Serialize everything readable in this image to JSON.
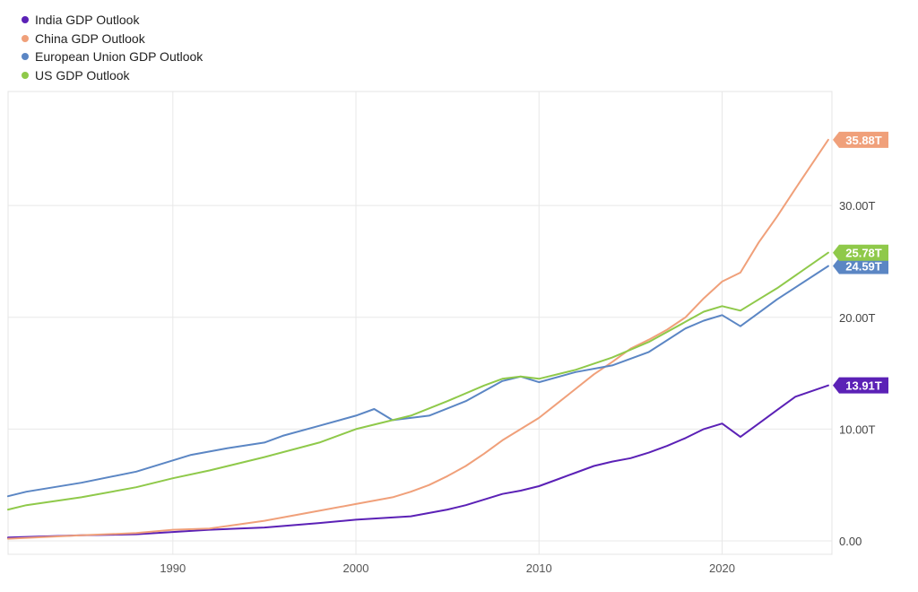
{
  "chart_data": {
    "type": "line",
    "title": "",
    "xlabel": "",
    "ylabel": "",
    "xlim": [
      1981,
      2026
    ],
    "ylim": [
      -1.2,
      40.2
    ],
    "x_ticks": [
      1990,
      2000,
      2010,
      2020
    ],
    "x_tick_labels": [
      "1990",
      "2000",
      "2010",
      "2020"
    ],
    "y_ticks": [
      0,
      10,
      20,
      30
    ],
    "y_tick_labels": [
      "0.00",
      "10.00T",
      "20.00T",
      "30.00T"
    ],
    "grid": true,
    "legend_position": "top-left",
    "series": [
      {
        "name": "India GDP Outlook",
        "color": "#5b21b6",
        "end_label": "13.91T",
        "points": [
          [
            1981,
            0.3
          ],
          [
            1985,
            0.5
          ],
          [
            1988,
            0.6
          ],
          [
            1990,
            0.8
          ],
          [
            1992,
            1.0
          ],
          [
            1995,
            1.2
          ],
          [
            1998,
            1.6
          ],
          [
            2000,
            1.9
          ],
          [
            2002,
            2.1
          ],
          [
            2003,
            2.2
          ],
          [
            2004,
            2.5
          ],
          [
            2005,
            2.8
          ],
          [
            2006,
            3.2
          ],
          [
            2007,
            3.7
          ],
          [
            2008,
            4.2
          ],
          [
            2009,
            4.5
          ],
          [
            2010,
            4.9
          ],
          [
            2011,
            5.5
          ],
          [
            2012,
            6.1
          ],
          [
            2013,
            6.7
          ],
          [
            2014,
            7.1
          ],
          [
            2015,
            7.4
          ],
          [
            2016,
            7.9
          ],
          [
            2017,
            8.5
          ],
          [
            2018,
            9.2
          ],
          [
            2019,
            10.0
          ],
          [
            2020,
            10.5
          ],
          [
            2021,
            9.3
          ],
          [
            2022,
            10.5
          ],
          [
            2023,
            11.7
          ],
          [
            2024,
            12.9
          ],
          [
            2025.8,
            13.91
          ]
        ]
      },
      {
        "name": "China GDP Outlook",
        "color": "#f0a07a",
        "end_label": "35.88T",
        "points": [
          [
            1981,
            0.2
          ],
          [
            1985,
            0.5
          ],
          [
            1988,
            0.7
          ],
          [
            1990,
            1.0
          ],
          [
            1992,
            1.1
          ],
          [
            1995,
            1.8
          ],
          [
            1998,
            2.7
          ],
          [
            2000,
            3.3
          ],
          [
            2002,
            3.9
          ],
          [
            2003,
            4.4
          ],
          [
            2004,
            5.0
          ],
          [
            2005,
            5.8
          ],
          [
            2006,
            6.7
          ],
          [
            2007,
            7.8
          ],
          [
            2008,
            9.0
          ],
          [
            2009,
            10.0
          ],
          [
            2010,
            11.0
          ],
          [
            2011,
            12.3
          ],
          [
            2012,
            13.6
          ],
          [
            2013,
            14.9
          ],
          [
            2014,
            16.0
          ],
          [
            2015,
            17.2
          ],
          [
            2016,
            18.0
          ],
          [
            2017,
            18.9
          ],
          [
            2018,
            20.0
          ],
          [
            2019,
            21.7
          ],
          [
            2020,
            23.2
          ],
          [
            2021,
            24.0
          ],
          [
            2022,
            26.7
          ],
          [
            2023,
            29.0
          ],
          [
            2024,
            31.5
          ],
          [
            2025.8,
            35.88
          ]
        ]
      },
      {
        "name": "European Union GDP Outlook",
        "color": "#5b86c4",
        "end_label": "24.59T",
        "points": [
          [
            1981,
            4.0
          ],
          [
            1982,
            4.4
          ],
          [
            1985,
            5.2
          ],
          [
            1988,
            6.2
          ],
          [
            1990,
            7.2
          ],
          [
            1991,
            7.7
          ],
          [
            1993,
            8.3
          ],
          [
            1995,
            8.8
          ],
          [
            1996,
            9.4
          ],
          [
            1998,
            10.3
          ],
          [
            2000,
            11.2
          ],
          [
            2001,
            11.8
          ],
          [
            2002,
            10.8
          ],
          [
            2004,
            11.2
          ],
          [
            2006,
            12.5
          ],
          [
            2008,
            14.3
          ],
          [
            2009,
            14.7
          ],
          [
            2010,
            14.2
          ],
          [
            2012,
            15.1
          ],
          [
            2014,
            15.7
          ],
          [
            2016,
            16.9
          ],
          [
            2018,
            19.0
          ],
          [
            2019,
            19.7
          ],
          [
            2020,
            20.2
          ],
          [
            2021,
            19.2
          ],
          [
            2022,
            20.4
          ],
          [
            2023,
            21.6
          ],
          [
            2025.8,
            24.59
          ]
        ]
      },
      {
        "name": "US GDP Outlook",
        "color": "#8fc94a",
        "end_label": "25.78T",
        "points": [
          [
            1981,
            2.8
          ],
          [
            1982,
            3.2
          ],
          [
            1985,
            3.9
          ],
          [
            1988,
            4.8
          ],
          [
            1990,
            5.6
          ],
          [
            1992,
            6.3
          ],
          [
            1995,
            7.5
          ],
          [
            1998,
            8.8
          ],
          [
            2000,
            10.0
          ],
          [
            2001,
            10.4
          ],
          [
            2003,
            11.2
          ],
          [
            2005,
            12.5
          ],
          [
            2007,
            13.9
          ],
          [
            2008,
            14.5
          ],
          [
            2009,
            14.7
          ],
          [
            2010,
            14.5
          ],
          [
            2012,
            15.3
          ],
          [
            2014,
            16.4
          ],
          [
            2016,
            17.8
          ],
          [
            2018,
            19.6
          ],
          [
            2019,
            20.5
          ],
          [
            2020,
            21.0
          ],
          [
            2021,
            20.6
          ],
          [
            2022,
            21.6
          ],
          [
            2023,
            22.6
          ],
          [
            2025.8,
            25.78
          ]
        ]
      }
    ]
  }
}
